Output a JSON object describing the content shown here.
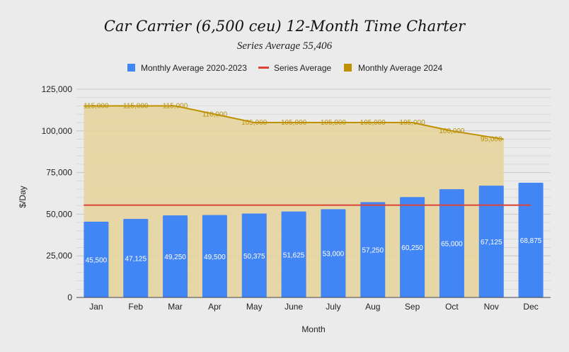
{
  "chart_data": {
    "type": "bar",
    "title": "Car Carrier (6,500 ceu) 12-Month Time Charter",
    "subtitle": "Series Average 55,406",
    "xlabel": "Month",
    "ylabel": "$/Day",
    "ylim": [
      0,
      125000
    ],
    "yticks": [
      0,
      25000,
      50000,
      75000,
      100000,
      125000
    ],
    "ytick_labels": [
      "0",
      "25,000",
      "50,000",
      "75,000",
      "100,000",
      "125,000"
    ],
    "grid": true,
    "legend_position": "top",
    "categories": [
      "Jan",
      "Feb",
      "Mar",
      "Apr",
      "May",
      "June",
      "July",
      "Aug",
      "Sep",
      "Oct",
      "Nov",
      "Dec"
    ],
    "series": [
      {
        "name": "Monthly Average 2020-2023",
        "type": "bar",
        "color": "#4285f4",
        "values": [
          45500,
          47125,
          49250,
          49500,
          50375,
          51625,
          53000,
          57250,
          60250,
          65000,
          67125,
          68875
        ],
        "labels": [
          "45,500",
          "47,125",
          "49,250",
          "49,500",
          "50,375",
          "51,625",
          "53,000",
          "57,250",
          "60,250",
          "65,000",
          "67,125",
          "68,875"
        ]
      },
      {
        "name": "Series Average",
        "type": "line",
        "color": "#db4437",
        "value": 55406
      },
      {
        "name": "Monthly Average 2024",
        "type": "area",
        "color": "#bf9000",
        "values": [
          115000,
          115000,
          115000,
          110000,
          105000,
          105000,
          105000,
          105000,
          105000,
          100000,
          95000,
          null
        ],
        "labels": [
          "115,000",
          "115,000",
          "115,000",
          "110,000",
          "105,000",
          "105,000",
          "105,000",
          "105,000",
          "105,000",
          "100,000",
          "95,000",
          ""
        ]
      }
    ]
  }
}
